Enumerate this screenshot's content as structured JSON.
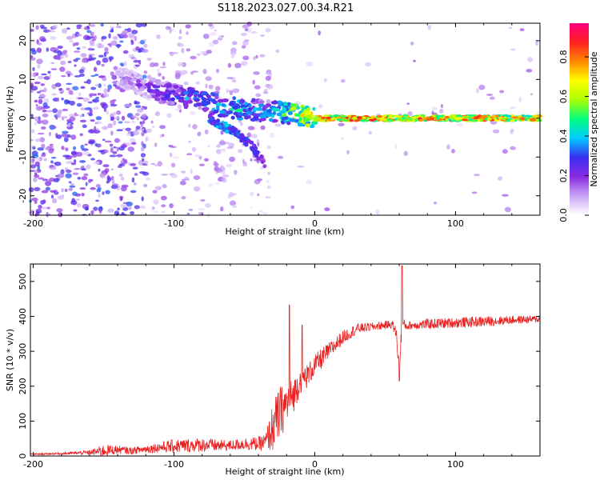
{
  "title": "S118.2023.027.00.34.R21",
  "chart_data": [
    {
      "type": "heatmap",
      "xlabel": "Height of straight line (km)",
      "ylabel": "Frequency (Hz)",
      "xlim": [
        -202,
        160
      ],
      "ylim": [
        -25,
        24.5
      ],
      "xticks": [
        -200,
        -100,
        0,
        100
      ],
      "xtick_labels": [
        "-200",
        "-100",
        "0",
        "100"
      ],
      "yticks": [
        -20,
        -10,
        0,
        10,
        20
      ],
      "ytick_labels": [
        "-20",
        "-10",
        "0",
        "10",
        "20"
      ],
      "colorbar": {
        "label": "Normalized spectral amplitude",
        "range": [
          0,
          0.97
        ],
        "ticks": [
          0.0,
          0.2,
          0.4,
          0.6,
          0.8
        ],
        "tick_labels": [
          "0.0",
          "0.2",
          "0.4",
          "0.6",
          "0.8"
        ],
        "colors": [
          "#ffffff",
          "#c9a6f5",
          "#8a2be2",
          "#3a2df0",
          "#00c8ff",
          "#00ff80",
          "#a8ff00",
          "#ffff00",
          "#ff8800",
          "#ff2020",
          "#ff0080"
        ]
      },
      "ridge": {
        "x": [
          -140,
          -120,
          -100,
          -85,
          -70,
          -55,
          -40,
          -25,
          -15,
          -5,
          0,
          20,
          60,
          100,
          160
        ],
        "frequency": [
          11,
          8,
          6,
          5,
          3.5,
          2.5,
          2,
          1.5,
          1,
          0.5,
          0,
          0,
          0,
          0,
          0
        ],
        "amplitude": [
          0.15,
          0.25,
          0.35,
          0.45,
          0.45,
          0.5,
          0.4,
          0.5,
          0.7,
          0.75,
          0.85,
          0.9,
          0.85,
          0.85,
          0.8
        ]
      },
      "branch": {
        "x": [
          -75,
          -65,
          -55,
          -45,
          -35
        ],
        "frequency": [
          0,
          -2,
          -4,
          -7,
          -12
        ],
        "amplitude": [
          0.3,
          0.4,
          0.35,
          0.3,
          0.2
        ]
      }
    },
    {
      "type": "line",
      "xlabel": "Height of straight line (km)",
      "ylabel": "SNR (10 * v/v)",
      "xlim": [
        -202,
        160
      ],
      "ylim": [
        0,
        550
      ],
      "xticks": [
        -200,
        -100,
        0,
        100
      ],
      "xtick_labels": [
        "-200",
        "-100",
        "0",
        "100"
      ],
      "yticks": [
        0,
        100,
        200,
        300,
        400,
        500
      ],
      "ytick_labels": [
        "0",
        "100",
        "200",
        "300",
        "400",
        "500"
      ],
      "series": [
        {
          "color": "#e82020",
          "x": [
            -202,
            -180,
            -160,
            -150,
            -140,
            -130,
            -120,
            -110,
            -100,
            -90,
            -80,
            -70,
            -60,
            -50,
            -40,
            -35,
            -30,
            -25,
            -20,
            -15,
            -10,
            -5,
            0,
            5,
            10,
            20,
            30,
            40,
            50,
            55,
            58,
            60,
            62,
            65,
            70,
            80,
            100,
            120,
            140,
            160
          ],
          "y": [
            5,
            7,
            10,
            15,
            18,
            15,
            20,
            25,
            28,
            30,
            32,
            30,
            30,
            35,
            35,
            40,
            80,
            120,
            150,
            175,
            220,
            230,
            260,
            280,
            300,
            340,
            365,
            370,
            375,
            378,
            350,
            250,
            380,
            372,
            375,
            378,
            382,
            385,
            390,
            392
          ],
          "noise": [
            2,
            3,
            6,
            18,
            12,
            10,
            12,
            15,
            20,
            20,
            20,
            18,
            15,
            18,
            20,
            25,
            70,
            80,
            60,
            50,
            40,
            35,
            30,
            30,
            25,
            20,
            15,
            12,
            12,
            12,
            20,
            30,
            20,
            12,
            12,
            15,
            15,
            15,
            12,
            10
          ]
        }
      ],
      "spikes": [
        {
          "x": -18,
          "y": 433
        },
        {
          "x": -9,
          "y": 375
        },
        {
          "x": 62,
          "y": 545
        },
        {
          "x": 60,
          "y": 215
        }
      ]
    }
  ]
}
